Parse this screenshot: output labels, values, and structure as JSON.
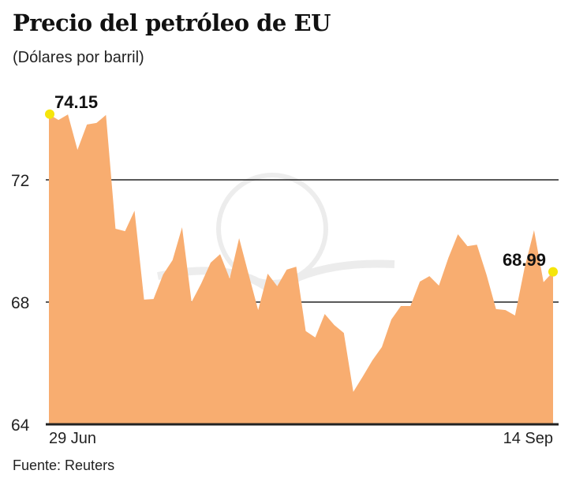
{
  "chart_data": {
    "type": "area",
    "title": "Precio del petróleo de EU",
    "subtitle": "(Dólares por barril)",
    "source": "Fuente: Reuters",
    "xlabel": "",
    "ylabel": "",
    "x_tick_labels": [
      "29 Jun",
      "14 Sep"
    ],
    "y_ticks": [
      64,
      68,
      72
    ],
    "ylim": [
      64,
      75
    ],
    "grid": true,
    "fill_color": "#f8ad70",
    "marker_color": "#f5e50a",
    "series": [
      {
        "name": "Precio del petróleo de EU",
        "values": [
          74.15,
          73.96,
          74.14,
          72.98,
          73.81,
          73.86,
          74.12,
          70.4,
          70.32,
          70.99,
          68.08,
          68.1,
          68.9,
          69.37,
          70.45,
          68.0,
          68.6,
          69.29,
          69.57,
          68.77,
          70.09,
          68.9,
          67.74,
          68.93,
          68.52,
          69.06,
          69.16,
          67.05,
          66.84,
          67.61,
          67.25,
          66.99,
          65.06,
          65.57,
          66.09,
          66.53,
          67.43,
          67.87,
          67.87,
          68.67,
          68.85,
          68.54,
          69.45,
          70.22,
          69.83,
          69.88,
          68.9,
          67.77,
          67.74,
          67.56,
          69.11,
          70.35,
          68.65,
          68.99
        ]
      }
    ],
    "annotations": [
      {
        "text": "74.15",
        "point": "first"
      },
      {
        "text": "68.99",
        "point": "last"
      }
    ]
  }
}
